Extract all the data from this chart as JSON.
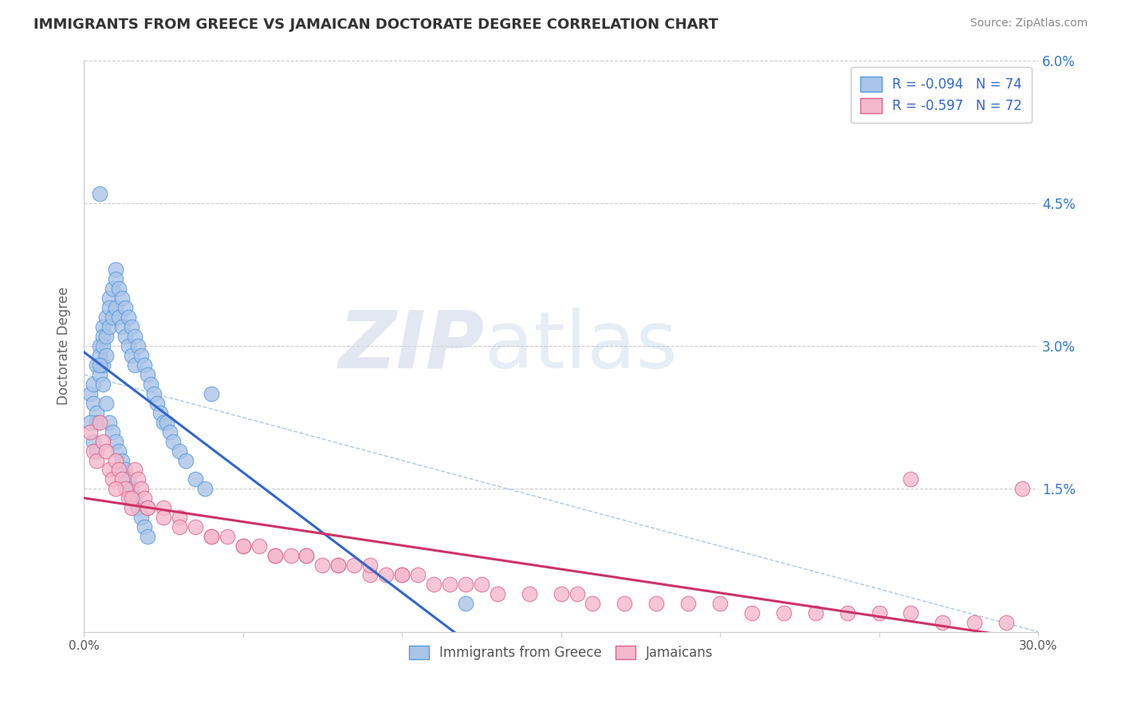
{
  "title": "IMMIGRANTS FROM GREECE VS JAMAICAN DOCTORATE DEGREE CORRELATION CHART",
  "source_text": "Source: ZipAtlas.com",
  "ylabel": "Doctorate Degree",
  "xlim": [
    0.0,
    0.3
  ],
  "ylim": [
    0.0,
    0.06
  ],
  "yticks": [
    0.0,
    0.015,
    0.03,
    0.045,
    0.06
  ],
  "ytick_labels": [
    "",
    "1.5%",
    "3.0%",
    "4.5%",
    "6.0%"
  ],
  "xticks": [
    0.0,
    0.05,
    0.1,
    0.15,
    0.2,
    0.25,
    0.3
  ],
  "xtick_labels": [
    "0.0%",
    "",
    "",
    "",
    "",
    "",
    "30.0%"
  ],
  "grid_color": "#cccccc",
  "background_color": "#ffffff",
  "greece_color": "#aac4e8",
  "greece_edge": "#5599dd",
  "greece_line": "#3366cc",
  "jamaica_color": "#f4b8cc",
  "jamaica_edge": "#dd6688",
  "jamaica_line": "#cc3366",
  "dashed_color": "#99bbdd",
  "legend_entries": [
    {
      "label": "R = -0.094   N = 74",
      "color": "#aac4e8",
      "edge": "#5599dd"
    },
    {
      "label": "R = -0.597   N = 72",
      "color": "#f4b8cc",
      "edge": "#dd6688"
    }
  ],
  "greece_x": [
    0.002,
    0.003,
    0.003,
    0.004,
    0.004,
    0.004,
    0.005,
    0.005,
    0.005,
    0.006,
    0.006,
    0.006,
    0.006,
    0.007,
    0.007,
    0.007,
    0.008,
    0.008,
    0.008,
    0.009,
    0.009,
    0.01,
    0.01,
    0.01,
    0.011,
    0.011,
    0.012,
    0.012,
    0.013,
    0.013,
    0.014,
    0.014,
    0.015,
    0.015,
    0.016,
    0.016,
    0.017,
    0.018,
    0.019,
    0.02,
    0.021,
    0.022,
    0.023,
    0.024,
    0.025,
    0.026,
    0.027,
    0.028,
    0.03,
    0.032,
    0.035,
    0.038,
    0.002,
    0.003,
    0.004,
    0.005,
    0.006,
    0.007,
    0.008,
    0.009,
    0.01,
    0.011,
    0.012,
    0.013,
    0.014,
    0.015,
    0.016,
    0.017,
    0.018,
    0.019,
    0.02,
    0.005,
    0.04,
    0.12
  ],
  "greece_y": [
    0.025,
    0.026,
    0.024,
    0.028,
    0.023,
    0.022,
    0.03,
    0.029,
    0.027,
    0.032,
    0.031,
    0.03,
    0.028,
    0.033,
    0.031,
    0.029,
    0.035,
    0.034,
    0.032,
    0.036,
    0.033,
    0.038,
    0.037,
    0.034,
    0.036,
    0.033,
    0.035,
    0.032,
    0.034,
    0.031,
    0.033,
    0.03,
    0.032,
    0.029,
    0.031,
    0.028,
    0.03,
    0.029,
    0.028,
    0.027,
    0.026,
    0.025,
    0.024,
    0.023,
    0.022,
    0.022,
    0.021,
    0.02,
    0.019,
    0.018,
    0.016,
    0.015,
    0.022,
    0.02,
    0.019,
    0.028,
    0.026,
    0.024,
    0.022,
    0.021,
    0.02,
    0.019,
    0.018,
    0.017,
    0.016,
    0.015,
    0.014,
    0.013,
    0.012,
    0.011,
    0.01,
    0.046,
    0.025,
    0.003
  ],
  "jamaica_x": [
    0.002,
    0.003,
    0.004,
    0.005,
    0.006,
    0.007,
    0.008,
    0.009,
    0.01,
    0.011,
    0.012,
    0.013,
    0.014,
    0.015,
    0.016,
    0.017,
    0.018,
    0.019,
    0.02,
    0.025,
    0.03,
    0.035,
    0.04,
    0.045,
    0.05,
    0.055,
    0.06,
    0.065,
    0.07,
    0.075,
    0.08,
    0.085,
    0.09,
    0.095,
    0.1,
    0.105,
    0.11,
    0.115,
    0.12,
    0.125,
    0.13,
    0.14,
    0.15,
    0.155,
    0.16,
    0.17,
    0.18,
    0.19,
    0.2,
    0.21,
    0.22,
    0.23,
    0.24,
    0.25,
    0.26,
    0.27,
    0.28,
    0.29,
    0.01,
    0.015,
    0.02,
    0.025,
    0.03,
    0.04,
    0.05,
    0.06,
    0.07,
    0.08,
    0.09,
    0.1,
    0.295,
    0.26
  ],
  "jamaica_y": [
    0.021,
    0.019,
    0.018,
    0.022,
    0.02,
    0.019,
    0.017,
    0.016,
    0.018,
    0.017,
    0.016,
    0.015,
    0.014,
    0.013,
    0.017,
    0.016,
    0.015,
    0.014,
    0.013,
    0.013,
    0.012,
    0.011,
    0.01,
    0.01,
    0.009,
    0.009,
    0.008,
    0.008,
    0.008,
    0.007,
    0.007,
    0.007,
    0.006,
    0.006,
    0.006,
    0.006,
    0.005,
    0.005,
    0.005,
    0.005,
    0.004,
    0.004,
    0.004,
    0.004,
    0.003,
    0.003,
    0.003,
    0.003,
    0.003,
    0.002,
    0.002,
    0.002,
    0.002,
    0.002,
    0.002,
    0.001,
    0.001,
    0.001,
    0.015,
    0.014,
    0.013,
    0.012,
    0.011,
    0.01,
    0.009,
    0.008,
    0.008,
    0.007,
    0.007,
    0.006,
    0.015,
    0.016
  ]
}
